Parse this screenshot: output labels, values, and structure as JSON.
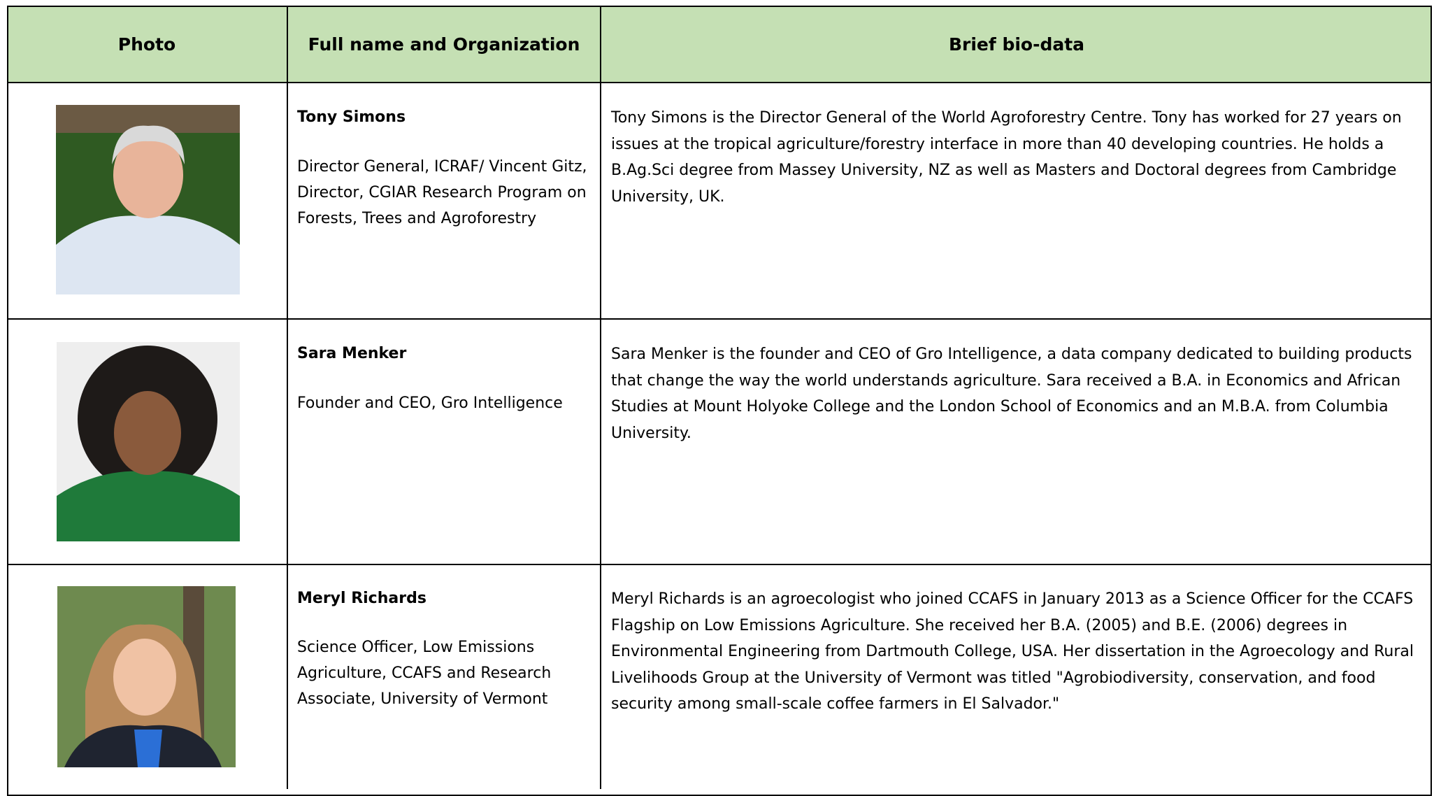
{
  "table": {
    "header": [
      "Photo",
      "Full name and Organization",
      "Brief bio-data"
    ],
    "rows": [
      {
        "name": "Tony Simons",
        "organization": "Director General, ICRAF/ Vincent Gitz, Director, CGIAR Research Program on Forests, Trees and Agroforestry",
        "bio": "Tony Simons is the Director General of the World Agroforestry Centre. Tony has worked for 27 years on issues at the tropical agriculture/forestry interface in more than 40 developing countries. He holds a B.Ag.Sci degree from Massey University, NZ as well as Masters and Doctoral degrees from Cambridge University, UK."
      },
      {
        "name": "Sara Menker",
        "organization": "Founder and CEO, Gro Intelligence",
        "bio": "Sara Menker is the founder and CEO of Gro Intelligence, a data company dedicated to building products that change the way the world understands agriculture. Sara received a B.A. in Economics and African Studies at Mount Holyoke College and the London School of Economics and an M.B.A. from Columbia University."
      },
      {
        "name": "Meryl Richards",
        "organization": "Science Officer, Low Emissions Agriculture, CCAFS and Research Associate, University of Vermont",
        "bio": "Meryl Richards is an agroecologist who joined CCAFS in January 2013 as a Science Officer for the CCAFS Flagship on Low Emissions Agriculture. She received her B.A. (2005) and B.E. (2006) degrees in Environmental Engineering from Dartmouth College, USA. Her dissertation in the Agroecology and Rural Livelihoods Group at the University of Vermont was titled \"Agrobiodiversity, conservation, and food security among small-scale coffee farmers in El Salvador.\""
      }
    ]
  }
}
